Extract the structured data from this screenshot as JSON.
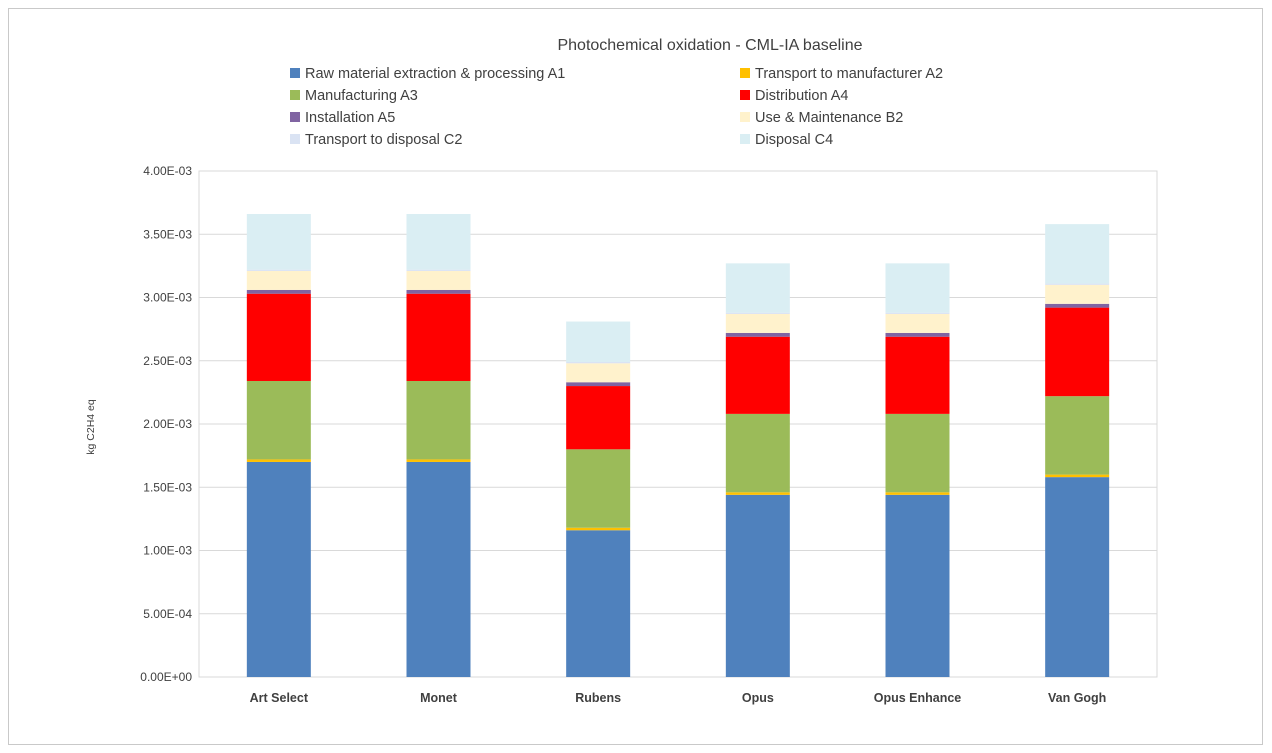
{
  "chart_data": {
    "type": "bar",
    "stacked": true,
    "title": "Photochemical oxidation - CML-IA baseline",
    "xlabel": "",
    "ylabel": "kg C2H4 eq",
    "ylim": [
      0,
      0.004
    ],
    "yticks": [
      0,
      0.0005,
      0.001,
      0.0015,
      0.002,
      0.0025,
      0.003,
      0.0035,
      0.004
    ],
    "ytick_labels": [
      "0.00E+00",
      "5.00E-04",
      "1.00E-03",
      "1.50E-03",
      "2.00E-03",
      "2.50E-03",
      "3.00E-03",
      "3.50E-03",
      "4.00E-03"
    ],
    "grid": true,
    "legend_position": "top",
    "categories": [
      "Art Select",
      "Monet",
      "Rubens",
      "Opus",
      "Opus Enhance",
      "Van Gogh"
    ],
    "series": [
      {
        "name": "Raw material extraction & processing A1",
        "color": "#4f81bd",
        "values": [
          0.0017,
          0.0017,
          0.00116,
          0.00144,
          0.00144,
          0.00158
        ]
      },
      {
        "name": "Transport to manufacturer A2",
        "color": "#ffc000",
        "values": [
          2e-05,
          2e-05,
          2e-05,
          2e-05,
          2e-05,
          2e-05
        ]
      },
      {
        "name": "Manufacturing A3",
        "color": "#9bbb59",
        "values": [
          0.00062,
          0.00062,
          0.00062,
          0.00062,
          0.00062,
          0.00062
        ]
      },
      {
        "name": "Distribution A4",
        "color": "#ff0000",
        "values": [
          0.00069,
          0.00069,
          0.0005,
          0.00061,
          0.00061,
          0.0007
        ]
      },
      {
        "name": "Installation A5",
        "color": "#8064a2",
        "values": [
          3e-05,
          3e-05,
          3e-05,
          3e-05,
          3e-05,
          3e-05
        ]
      },
      {
        "name": "Use & Maintenance B2",
        "color": "#fff2cc",
        "values": [
          0.00015,
          0.00015,
          0.00015,
          0.00015,
          0.00015,
          0.00015
        ]
      },
      {
        "name": "Transport to disposal C2",
        "color": "#dae3f3",
        "values": [
          1e-05,
          1e-05,
          1e-05,
          1e-05,
          1e-05,
          1e-05
        ]
      },
      {
        "name": "Disposal C4",
        "color": "#daeef3",
        "values": [
          0.00044,
          0.00044,
          0.00032,
          0.00039,
          0.00039,
          0.00047
        ]
      }
    ]
  },
  "colors": {
    "gridline": "#d9d9d9",
    "text": "#404040",
    "axis": "#bfbfbf"
  }
}
